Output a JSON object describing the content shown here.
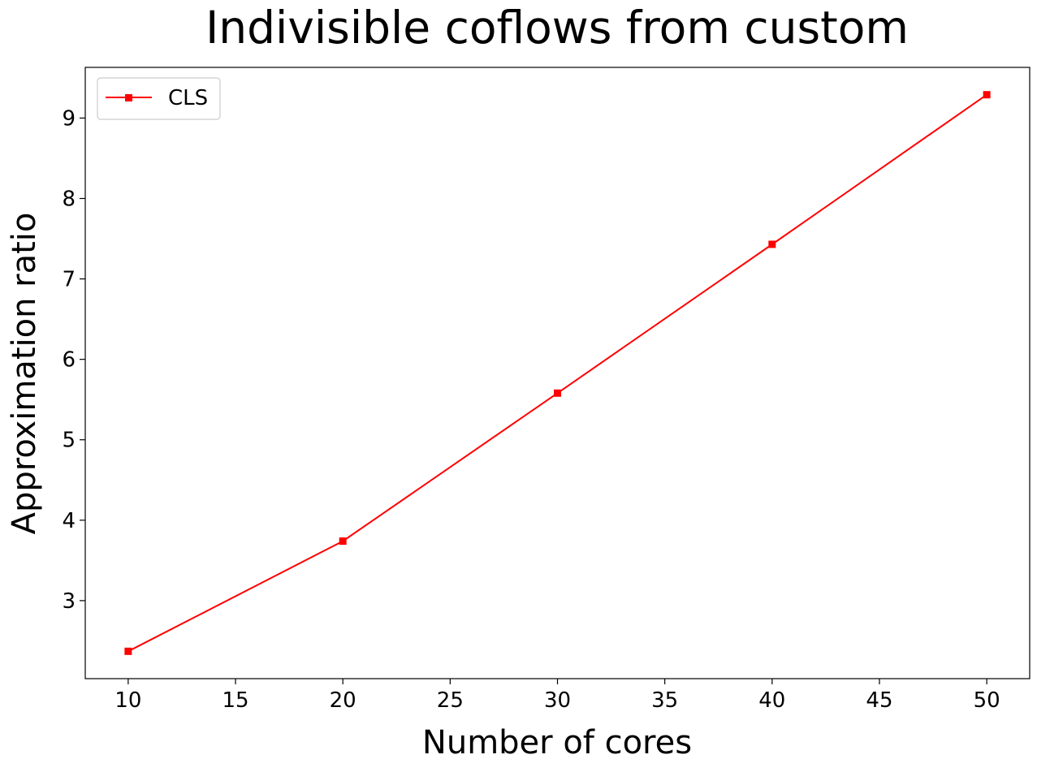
{
  "chart_data": {
    "type": "line",
    "title": "Indivisible coflows from custom",
    "xlabel": "Number of cores",
    "ylabel": "Approximation ratio",
    "x": [
      10,
      20,
      30,
      40,
      50
    ],
    "series": [
      {
        "name": "CLS",
        "color": "#ff0000",
        "marker": "square",
        "values": [
          2.37,
          3.74,
          5.58,
          7.43,
          9.29
        ]
      }
    ],
    "xlim": [
      8,
      52
    ],
    "ylim": [
      2.03,
      9.63
    ],
    "xticks": [
      10,
      15,
      20,
      25,
      30,
      35,
      40,
      45,
      50
    ],
    "yticks": [
      3,
      4,
      5,
      6,
      7,
      8,
      9
    ],
    "grid": false,
    "legend": "top-left"
  }
}
